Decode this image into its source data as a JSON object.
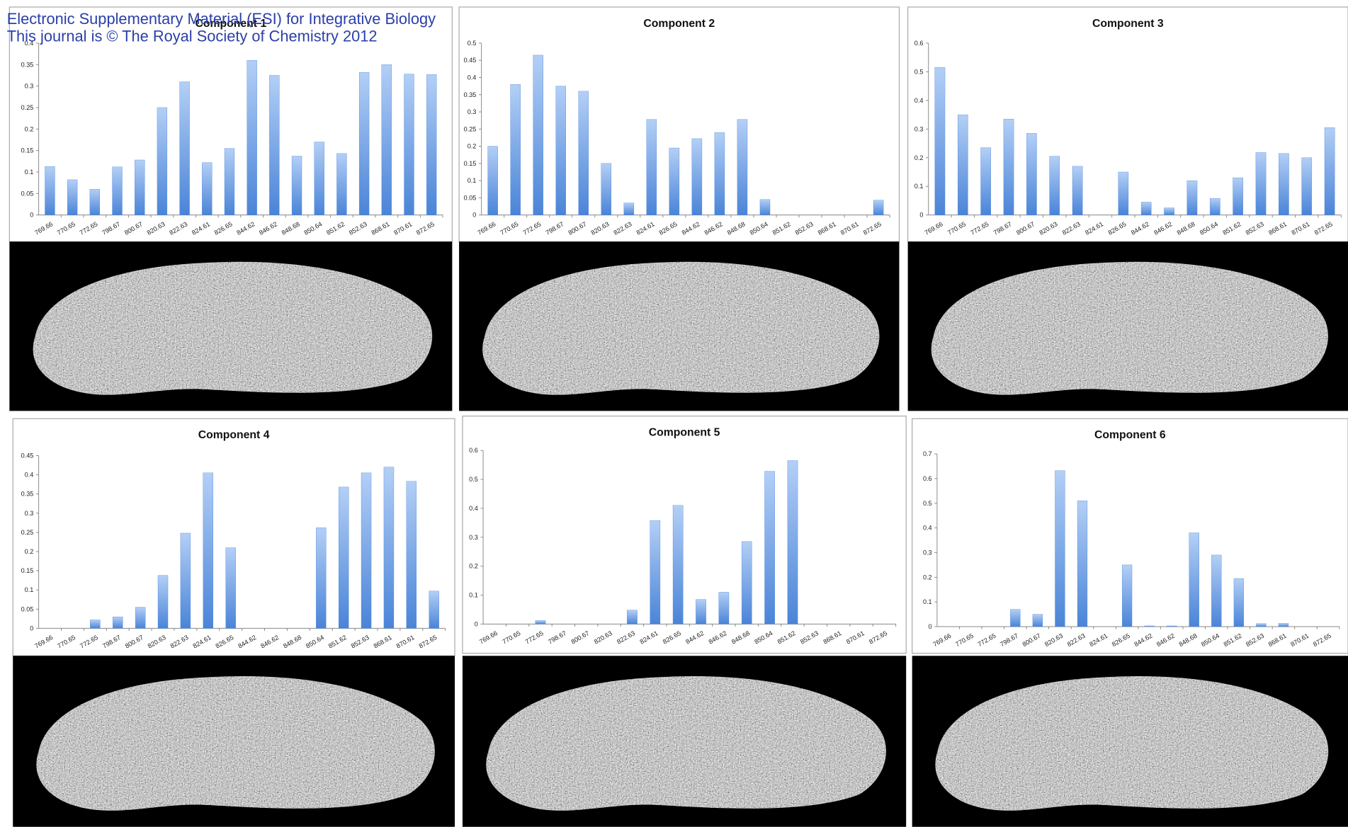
{
  "header": {
    "line1": "Electronic Supplementary Material (ESI) for Integrative Biology",
    "line2": "This journal is © The Royal Society of Chemistry 2012"
  },
  "chart_data": [
    {
      "type": "bar",
      "title": "Component 1",
      "color": "#4a84d8",
      "categories": [
        "769.66",
        "770.65",
        "772.65",
        "798.67",
        "800.67",
        "820.63",
        "822.63",
        "824.61",
        "826.65",
        "844.62",
        "846.62",
        "848.68",
        "850.64",
        "851.62",
        "852.63",
        "868.61",
        "870.61",
        "872.65"
      ],
      "values": [
        0.113,
        0.082,
        0.06,
        0.112,
        0.128,
        0.25,
        0.31,
        0.122,
        0.155,
        0.36,
        0.325,
        0.137,
        0.17,
        0.143,
        0.332,
        0.35,
        0.328,
        0.327
      ],
      "ylim": [
        0,
        0.4
      ],
      "yticks": [
        0,
        0.05,
        0.1,
        0.15,
        0.2,
        0.25,
        0.3,
        0.35,
        0.4
      ]
    },
    {
      "type": "bar",
      "title": "Component 2",
      "color": "#4a84d8",
      "categories": [
        "769.66",
        "770.65",
        "772.65",
        "798.67",
        "800.67",
        "820.63",
        "822.63",
        "824.61",
        "826.65",
        "844.62",
        "846.62",
        "848.68",
        "850.64",
        "851.62",
        "852.63",
        "868.61",
        "870.61",
        "872.65"
      ],
      "values": [
        0.2,
        0.38,
        0.465,
        0.375,
        0.36,
        0.15,
        0.035,
        0.278,
        0.195,
        0.222,
        0.24,
        0.278,
        0.045,
        0,
        0,
        0,
        0,
        0.043
      ],
      "ylim": [
        0,
        0.5
      ],
      "yticks": [
        0,
        0.05,
        0.1,
        0.15,
        0.2,
        0.25,
        0.3,
        0.35,
        0.4,
        0.45,
        0.5
      ]
    },
    {
      "type": "bar",
      "title": "Component 3",
      "color": "#4a84d8",
      "categories": [
        "769.66",
        "770.65",
        "772.65",
        "798.67",
        "800.67",
        "820.63",
        "822.63",
        "824.61",
        "826.65",
        "844.62",
        "846.62",
        "848.68",
        "850.64",
        "851.62",
        "852.63",
        "868.61",
        "870.61",
        "872.65"
      ],
      "values": [
        0.515,
        0.35,
        0.235,
        0.335,
        0.285,
        0.205,
        0.17,
        0,
        0.15,
        0.045,
        0.025,
        0.12,
        0.058,
        0.13,
        0.218,
        0.215,
        0.2,
        0.305
      ],
      "ylim": [
        0,
        0.6
      ],
      "yticks": [
        0,
        0.1,
        0.2,
        0.3,
        0.4,
        0.5,
        0.6
      ]
    },
    {
      "type": "bar",
      "title": "Component 4",
      "color": "#4a84d8",
      "categories": [
        "769.66",
        "770.65",
        "772.65",
        "798.67",
        "800.67",
        "820.63",
        "822.63",
        "824.61",
        "826.65",
        "844.62",
        "846.62",
        "848.68",
        "850.64",
        "851.62",
        "852.63",
        "868.61",
        "870.61",
        "872.65"
      ],
      "values": [
        0,
        0,
        0.022,
        0.03,
        0.055,
        0.138,
        0.248,
        0.405,
        0.21,
        0,
        0,
        0,
        0.262,
        0.368,
        0.405,
        0.42,
        0.383,
        0.097
      ],
      "ylim": [
        0,
        0.45
      ],
      "yticks": [
        0,
        0.05,
        0.1,
        0.15,
        0.2,
        0.25,
        0.3,
        0.35,
        0.4,
        0.45
      ]
    },
    {
      "type": "bar",
      "title": "Component 5",
      "color": "#4a84d8",
      "categories": [
        "769.66",
        "770.65",
        "772.65",
        "798.67",
        "800.67",
        "820.63",
        "822.63",
        "824.61",
        "826.65",
        "844.62",
        "846.62",
        "848.68",
        "850.64",
        "851.62",
        "852.63",
        "868.61",
        "870.61",
        "872.65"
      ],
      "values": [
        0,
        0,
        0.012,
        0,
        0,
        0,
        0.048,
        0.358,
        0.41,
        0.085,
        0.11,
        0.285,
        0.528,
        0.565,
        0,
        0,
        0,
        0
      ],
      "ylim": [
        0,
        0.6
      ],
      "yticks": [
        0,
        0.1,
        0.2,
        0.3,
        0.4,
        0.5,
        0.6
      ]
    },
    {
      "type": "bar",
      "title": "Component 6",
      "color": "#4a84d8",
      "categories": [
        "769.66",
        "770.65",
        "772.65",
        "798.67",
        "800.67",
        "820.63",
        "822.63",
        "824.61",
        "826.65",
        "844.62",
        "846.62",
        "848.68",
        "850.64",
        "851.62",
        "852.63",
        "868.61",
        "870.61",
        "872.65"
      ],
      "values": [
        0,
        0,
        0,
        0.07,
        0.05,
        0.632,
        0.51,
        0,
        0.25,
        0.003,
        0.003,
        0.38,
        0.29,
        0.195,
        0.012,
        0.013,
        0,
        0
      ],
      "ylim": [
        0,
        0.7
      ],
      "yticks": [
        0,
        0.1,
        0.2,
        0.3,
        0.4,
        0.5,
        0.6,
        0.7
      ]
    }
  ]
}
